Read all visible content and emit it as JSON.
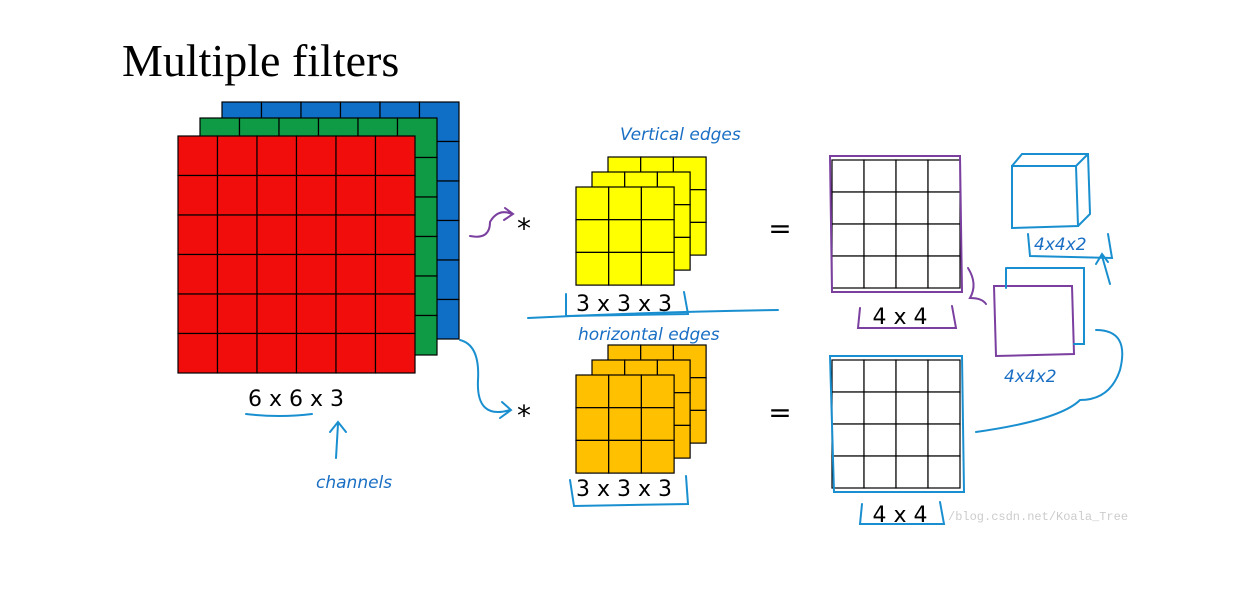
{
  "title": "Multiple filters",
  "input": {
    "label": "6 x 6 x 3",
    "annotation": "channels"
  },
  "filters": [
    {
      "annotation": "Vertical edges",
      "operator": "*",
      "label": "3 x 3 x 3",
      "equals": "=",
      "output_label": "4 x 4"
    },
    {
      "annotation": "horizontal edges",
      "operator": "*",
      "label": "3 x 3 x 3",
      "equals": "=",
      "output_label": "4 x 4"
    }
  ],
  "stacked_output": {
    "label": "4x4x2"
  },
  "volume_output": {
    "label": "4x4x2"
  },
  "watermark": "/blog.csdn.net/Koala_Tree"
}
